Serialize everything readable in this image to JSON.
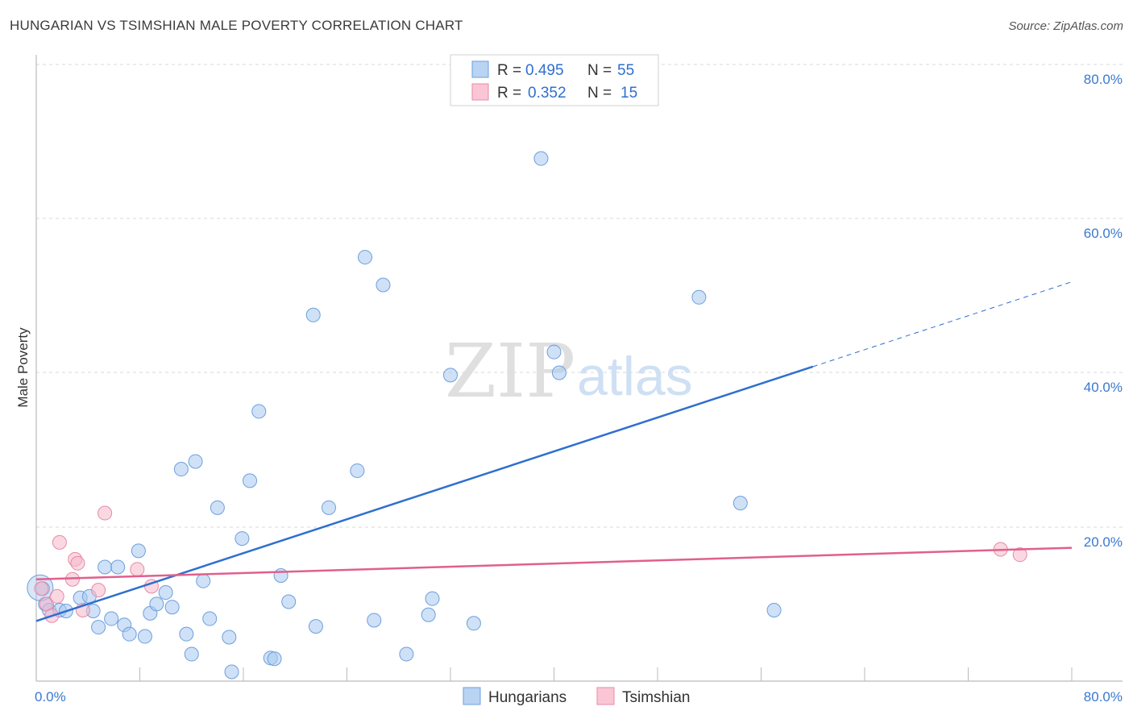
{
  "chart_data": {
    "type": "scatter",
    "title": "HUNGARIAN VS TSIMSHIAN MALE POVERTY CORRELATION CHART",
    "source": "Source: ZipAtlas.com",
    "ylabel": "Male Poverty",
    "xlabel": "",
    "xlim": [
      0,
      80
    ],
    "ylim": [
      0,
      80
    ],
    "y_ticks": [
      "80.0%",
      "60.0%",
      "40.0%",
      "20.0%"
    ],
    "x_tick_labels": [
      "0.0%",
      "80.0%"
    ],
    "watermark": {
      "zip": "ZIP",
      "atlas": "atlas"
    },
    "legend_top": [
      {
        "r_label": "R =",
        "r_value": "0.495",
        "n_label": "N =",
        "n_value": "55",
        "color": "#a8c8f0"
      },
      {
        "r_label": "R =",
        "r_value": "0.352",
        "n_label": "N =",
        "n_value": "15",
        "color": "#f6b8cb"
      }
    ],
    "series": [
      {
        "name": "Hungarians",
        "color": "#a8c8f0",
        "stroke": "#6d9fdc",
        "line_color": "#2f6fce",
        "trend": {
          "x0": 0,
          "y0": 7.8,
          "x1": 60,
          "y1": 40.8,
          "dash_to_x": 80,
          "dash_to_y": 51.8
        },
        "points": [
          [
            0.5,
            12
          ],
          [
            0.7,
            10
          ],
          [
            1.0,
            9.2
          ],
          [
            1.8,
            9.2
          ],
          [
            2.3,
            9.1
          ],
          [
            3.4,
            10.8
          ],
          [
            4.1,
            11
          ],
          [
            4.4,
            9.1
          ],
          [
            4.8,
            7
          ],
          [
            5.3,
            14.8
          ],
          [
            5.8,
            8.1
          ],
          [
            6.3,
            14.8
          ],
          [
            6.8,
            7.3
          ],
          [
            7.2,
            6.1
          ],
          [
            7.9,
            16.9
          ],
          [
            8.4,
            5.8
          ],
          [
            8.8,
            8.8
          ],
          [
            9.3,
            10
          ],
          [
            10.0,
            11.5
          ],
          [
            10.5,
            9.6
          ],
          [
            11.2,
            27.5
          ],
          [
            11.6,
            6.1
          ],
          [
            12.0,
            3.5
          ],
          [
            12.3,
            28.5
          ],
          [
            12.9,
            13
          ],
          [
            13.4,
            8.1
          ],
          [
            14.0,
            22.5
          ],
          [
            14.9,
            5.7
          ],
          [
            15.1,
            1.2
          ],
          [
            15.9,
            18.5
          ],
          [
            16.5,
            26
          ],
          [
            17.2,
            35
          ],
          [
            18.1,
            3
          ],
          [
            18.4,
            2.9
          ],
          [
            18.9,
            13.7
          ],
          [
            19.5,
            10.3
          ],
          [
            21.4,
            47.5
          ],
          [
            21.6,
            7.1
          ],
          [
            22.6,
            22.5
          ],
          [
            24.8,
            27.3
          ],
          [
            25.4,
            55
          ],
          [
            26.1,
            7.9
          ],
          [
            26.8,
            51.4
          ],
          [
            28.6,
            3.5
          ],
          [
            30.3,
            8.6
          ],
          [
            30.6,
            10.7
          ],
          [
            32.0,
            39.7
          ],
          [
            33.8,
            7.5
          ],
          [
            39.0,
            67.8
          ],
          [
            40.0,
            42.7
          ],
          [
            40.4,
            40
          ],
          [
            51.2,
            49.8
          ],
          [
            54.4,
            23.1
          ],
          [
            57.0,
            9.2
          ],
          [
            0.3,
            12.1
          ]
        ]
      },
      {
        "name": "Tsimshian",
        "color": "#f6b8cb",
        "stroke": "#e889a6",
        "line_color": "#e0608d",
        "trend": {
          "x0": 0,
          "y0": 13.2,
          "x1": 80,
          "y1": 17.3
        },
        "points": [
          [
            0.4,
            12
          ],
          [
            0.8,
            10
          ],
          [
            1.2,
            8.5
          ],
          [
            1.6,
            11
          ],
          [
            1.8,
            18
          ],
          [
            2.8,
            13.2
          ],
          [
            3.0,
            15.8
          ],
          [
            3.2,
            15.3
          ],
          [
            3.6,
            9.2
          ],
          [
            4.8,
            11.8
          ],
          [
            5.3,
            21.8
          ],
          [
            7.8,
            14.5
          ],
          [
            8.9,
            12.3
          ],
          [
            74.5,
            17.1
          ],
          [
            76.0,
            16.4
          ]
        ]
      }
    ]
  }
}
